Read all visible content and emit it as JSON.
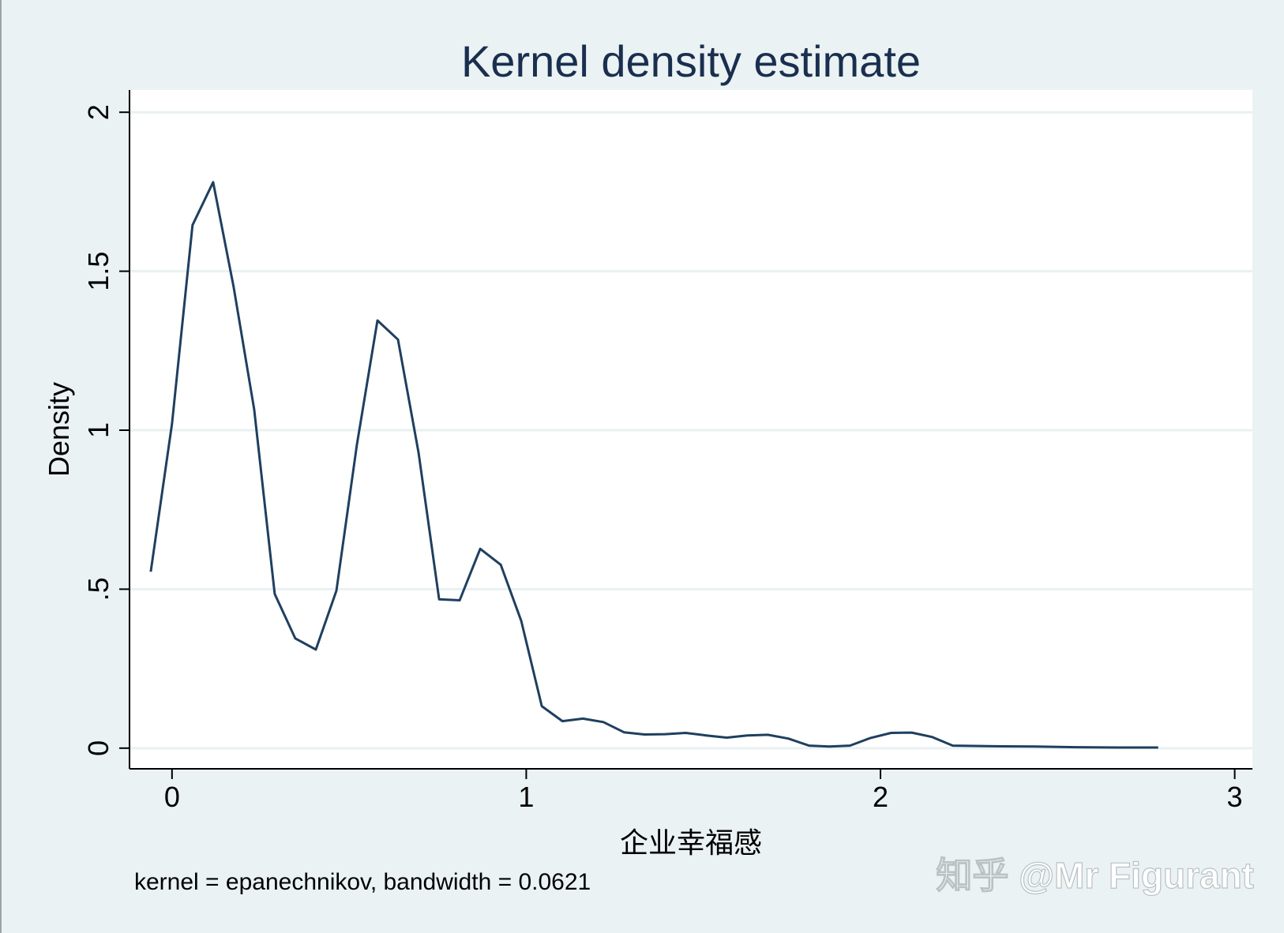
{
  "chart_data": {
    "type": "line",
    "title": "Kernel density estimate",
    "xlabel": "企业幸福感",
    "ylabel": "Density",
    "xlim": [
      -0.12,
      3.05
    ],
    "ylim": [
      -0.065,
      2.07
    ],
    "xticks": [
      0,
      1,
      2,
      3
    ],
    "xtick_labels": [
      "0",
      "1",
      "2",
      "3"
    ],
    "yticks": [
      0,
      0.5,
      1,
      1.5,
      2
    ],
    "ytick_labels": [
      "0",
      ".5",
      "1",
      "1.5",
      "2"
    ],
    "grid": true,
    "line_color": "#1f3f5f",
    "note": "kernel = epanechnikov, bandwidth = 0.0621",
    "series": [
      {
        "x": [
          -0.06,
          0.0,
          0.058,
          0.116,
          0.174,
          0.232,
          0.29,
          0.348,
          0.406,
          0.464,
          0.522,
          0.58,
          0.638,
          0.696,
          0.754,
          0.812,
          0.87,
          0.928,
          0.986,
          1.044,
          1.102,
          1.16,
          1.218,
          1.276,
          1.334,
          1.392,
          1.45,
          1.508,
          1.566,
          1.624,
          1.682,
          1.74,
          1.798,
          1.856,
          1.914,
          1.972,
          2.03,
          2.088,
          2.146,
          2.204,
          2.32,
          2.436,
          2.552,
          2.668,
          2.784
        ],
        "y": [
          0.555,
          1.02,
          1.645,
          1.78,
          1.45,
          1.065,
          0.485,
          0.345,
          0.31,
          0.495,
          0.955,
          1.345,
          1.285,
          0.93,
          0.468,
          0.465,
          0.627,
          0.577,
          0.4,
          0.132,
          0.085,
          0.093,
          0.082,
          0.05,
          0.043,
          0.044,
          0.048,
          0.04,
          0.033,
          0.04,
          0.042,
          0.03,
          0.008,
          0.005,
          0.008,
          0.032,
          0.048,
          0.049,
          0.035,
          0.008,
          0.006,
          0.005,
          0.003,
          0.002,
          0.002
        ]
      }
    ]
  },
  "watermark": "知乎 @Mr Figurant"
}
